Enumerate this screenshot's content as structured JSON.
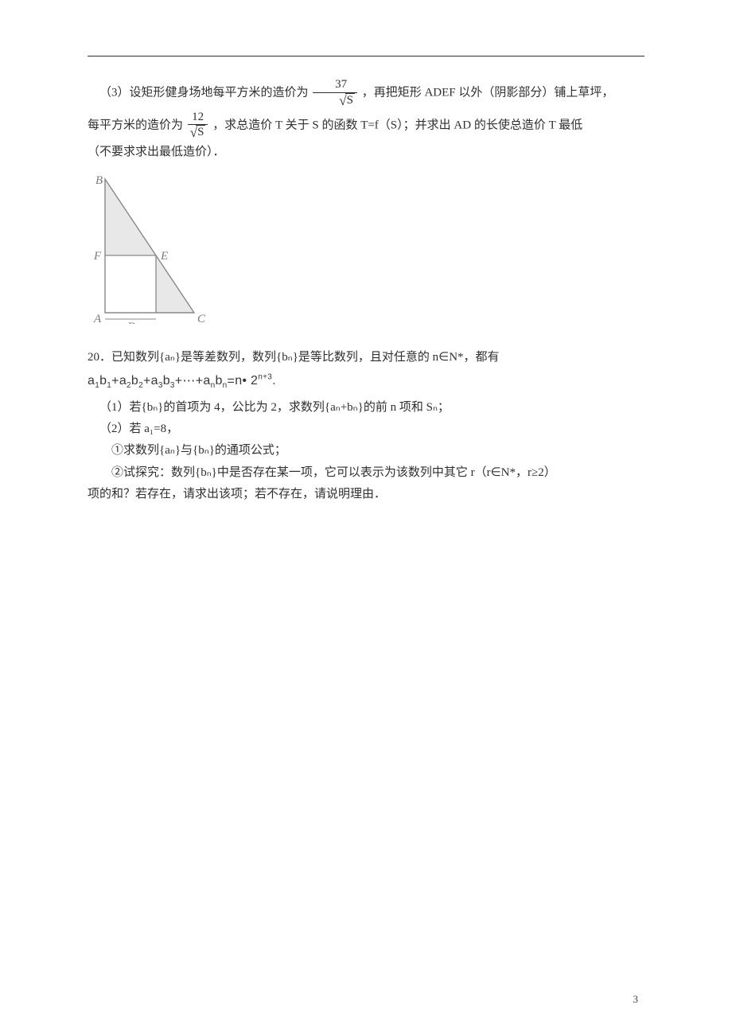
{
  "hr": {
    "color": "#303030"
  },
  "p1": {
    "prefix": "（3）设矩形健身场地每平方米的造价为",
    "frac1_num": "37",
    "frac1_den_var": "S",
    "mid": "，再把矩形 ADEF 以外（阴影部分）铺上草坪，"
  },
  "p2": {
    "prefix": "每平方米的造价为",
    "frac2_num": "12",
    "frac2_den_var": "S",
    "mid": "，求总造价 T 关于 S 的函数 T=f（S）；并求出 AD 的长使总造价 T 最低"
  },
  "p3": "（不要求求出最低造价）．",
  "figure": {
    "width": 146,
    "height": 194,
    "B": "B",
    "F": "F",
    "E": "E",
    "A": "A",
    "D": "D",
    "C": "C",
    "stroke": "#888888",
    "fill_light": "#e8e8e8",
    "label_color": "#7a7a7a",
    "label_font": "italic 15px 'Times New Roman', serif"
  },
  "q20": {
    "lead": "20．已知数列{aₙ}是等差数列，数列{bₙ}是等比数列，且对任意的 n∈N*，都有",
    "eq_a1": "a",
    "eq_b1": "b",
    "eq_terms_sub": [
      "1",
      "1",
      "2",
      "2",
      "3",
      "3",
      "n",
      "n"
    ],
    "eq_rhs_n": "n",
    "eq_rhs_base": "2",
    "eq_rhs_exp": "n+3",
    "eq_dot": "•",
    "p1": "（1）若{bₙ}的首项为 4，公比为 2，求数列{aₙ+bₙ}的前 n 项和 Sₙ；",
    "p2": "（2）若 a₁=8，",
    "p3": "①求数列{aₙ}与{bₙ}的通项公式；",
    "p4a": "②试探究：数列{bₙ}中是否存在某一项，它可以表示为该数列中其它 r（r∈N*，r≥2）",
    "p4b": "项的和？若存在，请求出该项；若不存在，请说明理由．"
  },
  "page_number": "3"
}
